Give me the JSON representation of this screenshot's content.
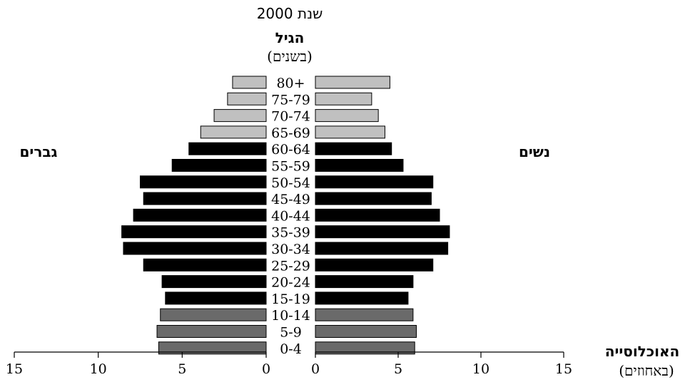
{
  "chart_data": {
    "type": "bar",
    "title": "שנת 2000",
    "age_heading": "הגיל",
    "age_subheading": "(בשנים)",
    "left_label": "גברים",
    "right_label": "נשים",
    "xlabel": "האוכלוסייה",
    "xlabel_unit": "(באחוזים)",
    "xlim": [
      0,
      15
    ],
    "ticks": [
      "15",
      "10",
      "5",
      "0",
      "0",
      "5",
      "10",
      "15"
    ],
    "categories": [
      "80+",
      "75-79",
      "70-74",
      "65-69",
      "60-64",
      "55-59",
      "50-54",
      "45-49",
      "40-44",
      "35-39",
      "30-34",
      "25-29",
      "20-24",
      "15-19",
      "10-14",
      "5-9",
      "0-4"
    ],
    "series": [
      {
        "name": "גברים",
        "values": [
          2.0,
          2.3,
          3.1,
          3.9,
          4.6,
          5.6,
          7.5,
          7.3,
          7.9,
          8.6,
          8.5,
          7.3,
          6.2,
          6.0,
          6.3,
          6.5,
          6.4
        ]
      },
      {
        "name": "נשים",
        "values": [
          4.5,
          3.4,
          3.8,
          4.2,
          4.6,
          5.3,
          7.1,
          7.0,
          7.5,
          8.1,
          8.0,
          7.1,
          5.9,
          5.6,
          5.9,
          6.1,
          6.0
        ]
      }
    ],
    "colors": {
      "age_65_plus": "#c0c0c0",
      "age_15_64": "#000000",
      "age_0_14": "#6a6a6a",
      "outline": "#000000"
    }
  }
}
